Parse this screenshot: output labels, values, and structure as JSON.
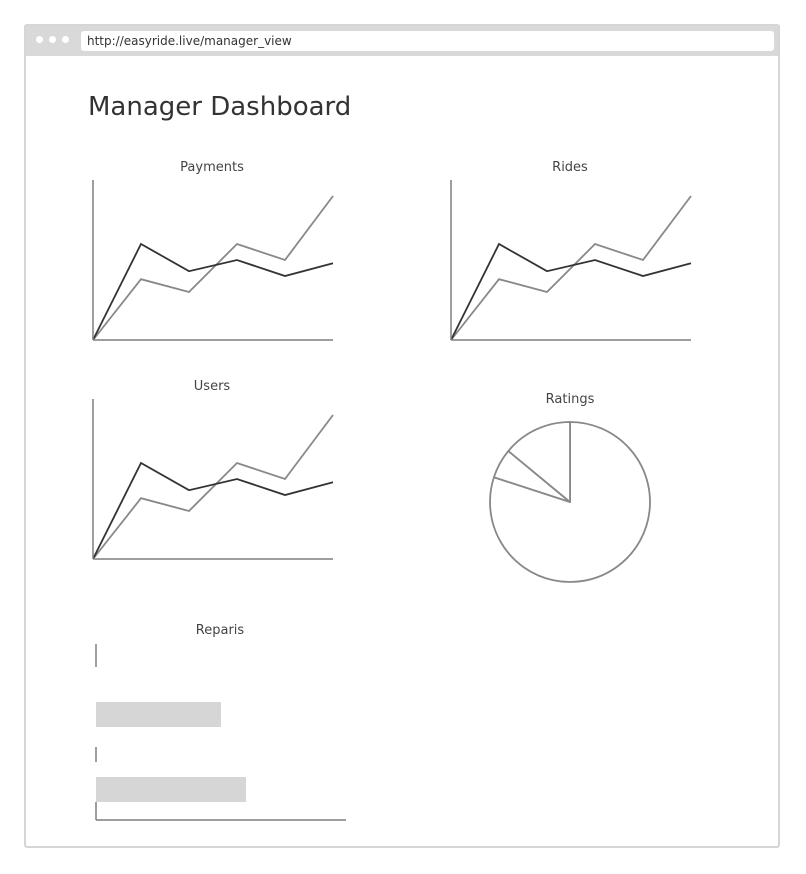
{
  "browser": {
    "url": "http://easyride.live/manager_view"
  },
  "page": {
    "title": "Manager Dashboard"
  },
  "colors": {
    "axis": "#7f7f7f",
    "series_dark": "#333333",
    "series_light": "#888888",
    "bar_fill": "#d6d6d6",
    "pie_stroke": "#888888"
  },
  "chart_data": [
    {
      "type": "line",
      "title": "Payments",
      "x": [
        0,
        1,
        2,
        3,
        4,
        5
      ],
      "series": [
        {
          "values": [
            0,
            6,
            4.3,
            5,
            4,
            4.8
          ]
        },
        {
          "values": [
            0,
            3.8,
            3,
            6,
            5,
            9
          ]
        }
      ],
      "ylim": [
        0,
        10
      ]
    },
    {
      "type": "line",
      "title": "Rides",
      "x": [
        0,
        1,
        2,
        3,
        4,
        5
      ],
      "series": [
        {
          "values": [
            0,
            6,
            4.3,
            5,
            4,
            4.8
          ]
        },
        {
          "values": [
            0,
            3.8,
            3,
            6,
            5,
            9
          ]
        }
      ],
      "ylim": [
        0,
        10
      ]
    },
    {
      "type": "line",
      "title": "Users",
      "x": [
        0,
        1,
        2,
        3,
        4,
        5
      ],
      "series": [
        {
          "values": [
            0,
            6,
            4.3,
            5,
            4,
            4.8
          ]
        },
        {
          "values": [
            0,
            3.8,
            3,
            6,
            5,
            9
          ]
        }
      ],
      "ylim": [
        0,
        10
      ]
    },
    {
      "type": "pie",
      "title": "Ratings",
      "values": [
        80,
        6,
        14
      ]
    },
    {
      "type": "bar",
      "orientation": "horizontal",
      "title": "Reparis",
      "values": [
        50,
        60
      ],
      "xlim": [
        0,
        100
      ]
    }
  ]
}
